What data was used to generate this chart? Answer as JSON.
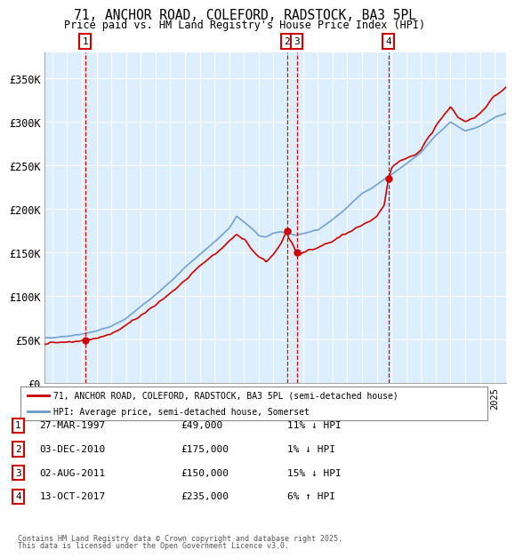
{
  "title_line1": "71, ANCHOR ROAD, COLEFORD, RADSTOCK, BA3 5PL",
  "title_line2": "Price paid vs. HM Land Registry's House Price Index (HPI)",
  "background_color": "#ffffff",
  "plot_bg_color": "#ddeeff",
  "grid_color": "#ffffff",
  "hpi_color": "#6699cc",
  "price_color": "#cc0000",
  "sale_marker_color": "#cc0000",
  "annotation_box_color": "#cc0000",
  "ylim": [
    0,
    380000
  ],
  "xlim_start": 1994.5,
  "xlim_end": 2025.8,
  "yticks": [
    0,
    50000,
    100000,
    150000,
    200000,
    250000,
    300000,
    350000
  ],
  "ytick_labels": [
    "£0",
    "£50K",
    "£100K",
    "£150K",
    "£200K",
    "£250K",
    "£300K",
    "£350K"
  ],
  "sales": [
    {
      "label": "1",
      "date_num": 1997.23,
      "price": 49000
    },
    {
      "label": "2",
      "date_num": 2010.92,
      "price": 175000
    },
    {
      "label": "3",
      "date_num": 2011.58,
      "price": 150000
    },
    {
      "label": "4",
      "date_num": 2017.78,
      "price": 235000
    }
  ],
  "hpi_anchors_x": [
    1994.5,
    1995,
    1996,
    1997,
    1998,
    1999,
    2000,
    2001,
    2002,
    2003,
    2004,
    2005,
    2006,
    2007,
    2007.5,
    2008,
    2008.5,
    2009,
    2009.5,
    2010,
    2010.5,
    2011,
    2011.5,
    2012,
    2013,
    2014,
    2015,
    2016,
    2017,
    2018,
    2019,
    2020,
    2021,
    2022,
    2022.5,
    2023,
    2024,
    2025,
    2025.8
  ],
  "hpi_anchors_y": [
    52000,
    52000,
    54000,
    56000,
    60000,
    65000,
    74000,
    88000,
    102000,
    116000,
    133000,
    148000,
    162000,
    178000,
    192000,
    185000,
    178000,
    170000,
    168000,
    172000,
    174000,
    172000,
    170000,
    172000,
    176000,
    188000,
    202000,
    218000,
    228000,
    240000,
    252000,
    265000,
    285000,
    300000,
    295000,
    290000,
    295000,
    305000,
    310000
  ],
  "price_anchors_x": [
    1994.5,
    1995,
    1996,
    1997.0,
    1997.23,
    1997.5,
    1998,
    1999,
    2000,
    2001,
    2002,
    2003,
    2004,
    2005,
    2006,
    2007,
    2007.5,
    2008,
    2008.5,
    2009,
    2009.5,
    2010,
    2010.5,
    2010.92,
    2011.0,
    2011.58,
    2011.8,
    2012,
    2013,
    2014,
    2015,
    2016,
    2017,
    2017.5,
    2017.78,
    2018,
    2018.5,
    2019,
    2020,
    2021,
    2022,
    2022.5,
    2023,
    2024,
    2025,
    2025.8
  ],
  "price_anchors_y": [
    46000,
    46000,
    47000,
    48500,
    49000,
    50000,
    52000,
    57000,
    66000,
    78000,
    90000,
    103000,
    118000,
    135000,
    148000,
    163000,
    170000,
    165000,
    155000,
    145000,
    140000,
    148000,
    160000,
    175000,
    168000,
    150000,
    147000,
    150000,
    155000,
    163000,
    172000,
    182000,
    190000,
    205000,
    235000,
    248000,
    255000,
    258000,
    268000,
    295000,
    318000,
    305000,
    300000,
    310000,
    330000,
    340000
  ],
  "legend_line1": "71, ANCHOR ROAD, COLEFORD, RADSTOCK, BA3 5PL (semi-detached house)",
  "legend_line2": "HPI: Average price, semi-detached house, Somerset",
  "footer_line1": "Contains HM Land Registry data © Crown copyright and database right 2025.",
  "footer_line2": "This data is licensed under the Open Government Licence v3.0.",
  "table_entries": [
    {
      "label": "1",
      "date": "27-MAR-1997",
      "amount": "£49,000",
      "pct": "11% ↓ HPI"
    },
    {
      "label": "2",
      "date": "03-DEC-2010",
      "amount": "£175,000",
      "pct": "1% ↓ HPI"
    },
    {
      "label": "3",
      "date": "02-AUG-2011",
      "amount": "£150,000",
      "pct": "15% ↓ HPI"
    },
    {
      "label": "4",
      "date": "13-OCT-2017",
      "amount": "£235,000",
      "pct": "6% ↑ HPI"
    }
  ]
}
